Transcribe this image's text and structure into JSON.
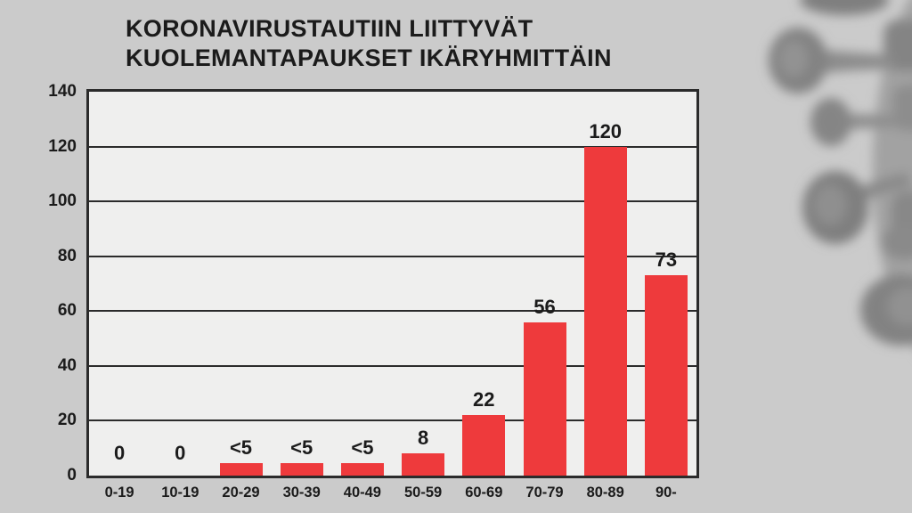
{
  "page": {
    "background_color": "#cbcbcb",
    "decoration": "blurred coronavirus illustration, right edge"
  },
  "chart_data": {
    "type": "bar",
    "title_lines": [
      "KORONAVIRUSTAUTIIN LIITTYVÄT",
      "KUOLEMANTAPAUKSET IKÄRYHMITTÄIN"
    ],
    "categories": [
      "0-19",
      "10-19",
      "20-29",
      "30-39",
      "40-49",
      "50-59",
      "60-69",
      "70-79",
      "80-89",
      "90-"
    ],
    "values": [
      0,
      0,
      4.5,
      4.5,
      4.5,
      8,
      22,
      56,
      120,
      73
    ],
    "bar_labels": [
      "0",
      "0",
      "<5",
      "<5",
      "<5",
      "8",
      "22",
      "56",
      "120",
      "73"
    ],
    "yticks": [
      0,
      20,
      40,
      60,
      80,
      100,
      120,
      140
    ],
    "ylim": [
      0,
      140
    ],
    "xlabel": "",
    "ylabel": "",
    "grid": "horizontal",
    "legend": "none",
    "bar_color": "#ee3a3c",
    "plot_background": "#efefee",
    "axis_color": "#2b2b2b",
    "text_color": "#1b1b1b"
  }
}
